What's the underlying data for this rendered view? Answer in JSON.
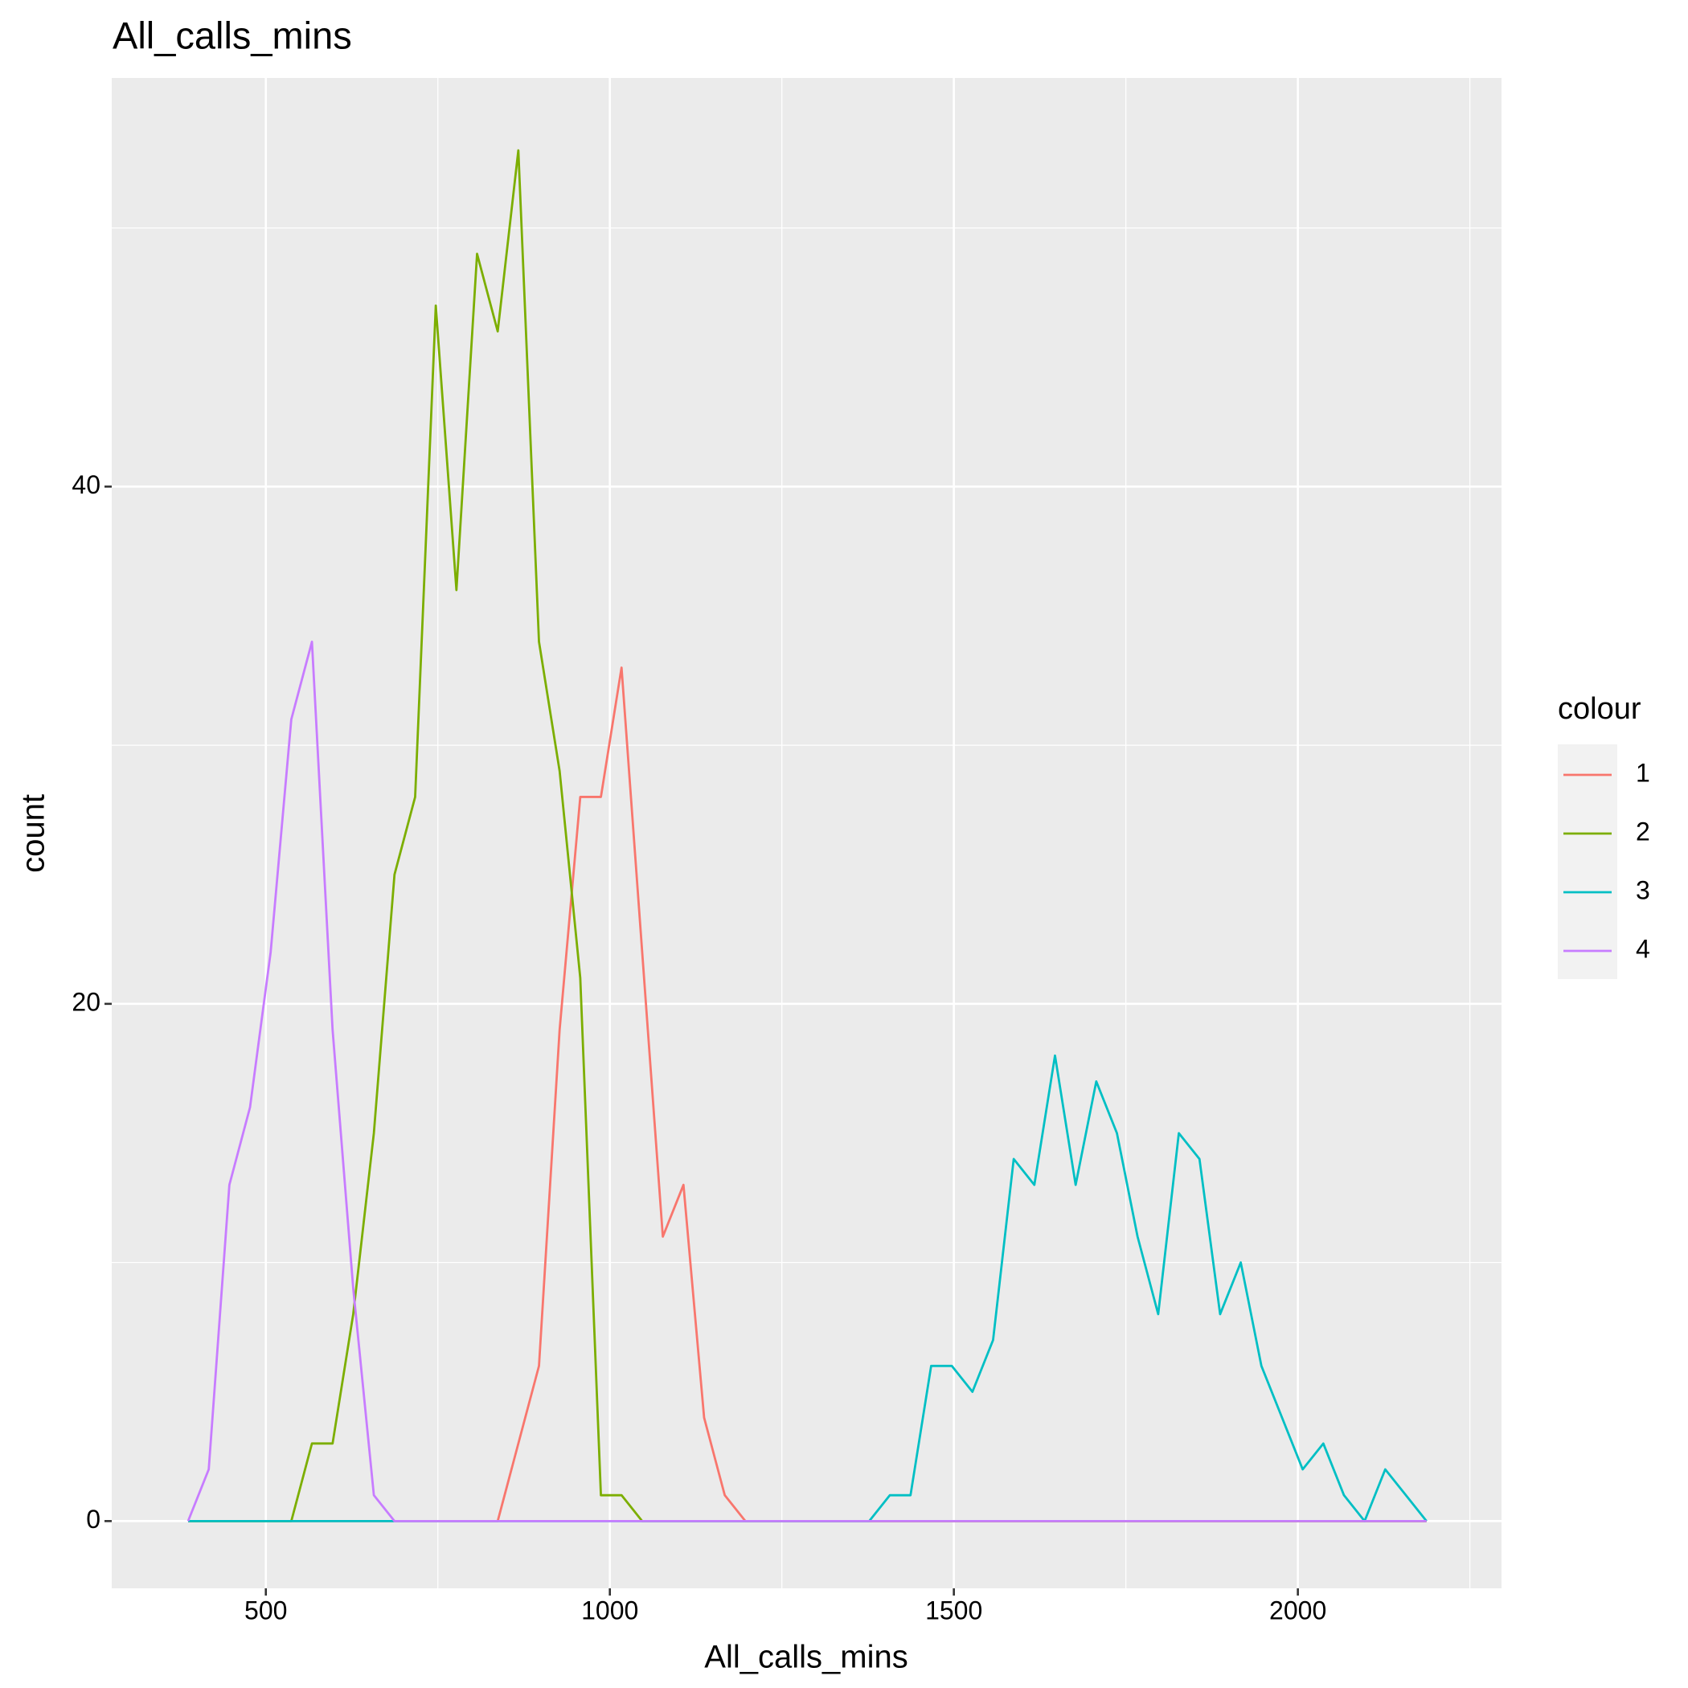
{
  "chart_data": {
    "type": "line",
    "title": "All_calls_mins",
    "x_label": "All_calls_mins",
    "y_label": "count",
    "legend_title": "colour",
    "legend_position": "right",
    "grid": true,
    "x": [
      387,
      417,
      447,
      477,
      507,
      537,
      567,
      597,
      627,
      657,
      687,
      717,
      747,
      777,
      807,
      837,
      867,
      897,
      927,
      957,
      987,
      1017,
      1047,
      1077,
      1107,
      1137,
      1167,
      1197,
      1227,
      1257,
      1287,
      1317,
      1347,
      1377,
      1407,
      1437,
      1467,
      1497,
      1527,
      1557,
      1587,
      1617,
      1647,
      1677,
      1707,
      1737,
      1767,
      1797,
      1827,
      1857,
      1887,
      1917,
      1947,
      1977,
      2007,
      2037,
      2067,
      2097,
      2127,
      2157,
      2187
    ],
    "series": [
      {
        "name": "1",
        "color": "#F8766D",
        "values": [
          0,
          0,
          0,
          0,
          0,
          0,
          0,
          0,
          0,
          0,
          0,
          0,
          0,
          0,
          0,
          0,
          3,
          6,
          19,
          28,
          28,
          33,
          22,
          11,
          13,
          4,
          1,
          0,
          0,
          0,
          0,
          0,
          0,
          0,
          0,
          0,
          0,
          0,
          0,
          0,
          0,
          0,
          0,
          0,
          0,
          0,
          0,
          0,
          0,
          0,
          0,
          0,
          0,
          0,
          0,
          0,
          0,
          0,
          0,
          0,
          0
        ]
      },
      {
        "name": "2",
        "color": "#7CAE00",
        "values": [
          0,
          0,
          0,
          0,
          0,
          0,
          3,
          3,
          8,
          15,
          25,
          28,
          47,
          36,
          49,
          46,
          53,
          34,
          29,
          21,
          1,
          1,
          0,
          0,
          0,
          0,
          0,
          0,
          0,
          0,
          0,
          0,
          0,
          0,
          0,
          0,
          0,
          0,
          0,
          0,
          0,
          0,
          0,
          0,
          0,
          0,
          0,
          0,
          0,
          0,
          0,
          0,
          0,
          0,
          0,
          0,
          0,
          0,
          0,
          0,
          0
        ]
      },
      {
        "name": "3",
        "color": "#00BFC4",
        "values": [
          0,
          0,
          0,
          0,
          0,
          0,
          0,
          0,
          0,
          0,
          0,
          0,
          0,
          0,
          0,
          0,
          0,
          0,
          0,
          0,
          0,
          0,
          0,
          0,
          0,
          0,
          0,
          0,
          0,
          0,
          0,
          0,
          0,
          0,
          1,
          1,
          6,
          6,
          5,
          7,
          14,
          13,
          18,
          13,
          17,
          15,
          11,
          8,
          15,
          14,
          8,
          10,
          6,
          4,
          2,
          3,
          1,
          0,
          2,
          1,
          0
        ]
      },
      {
        "name": "4",
        "color": "#C77CFF",
        "values": [
          0,
          2,
          13,
          16,
          22,
          31,
          34,
          19,
          9,
          1,
          0,
          0,
          0,
          0,
          0,
          0,
          0,
          0,
          0,
          0,
          0,
          0,
          0,
          0,
          0,
          0,
          0,
          0,
          0,
          0,
          0,
          0,
          0,
          0,
          0,
          0,
          0,
          0,
          0,
          0,
          0,
          0,
          0,
          0,
          0,
          0,
          0,
          0,
          0,
          0,
          0,
          0,
          0,
          0,
          0,
          0,
          0,
          0,
          0,
          0,
          0
        ]
      }
    ],
    "xlim": [
      276,
      2296
    ],
    "ylim": [
      -2.6,
      55.8
    ],
    "xticks": [
      500,
      1000,
      1500,
      2000
    ],
    "yticks": [
      0,
      20,
      40
    ],
    "x_minor_ticks": [
      250,
      750,
      1250,
      1750,
      2250
    ],
    "y_minor_ticks": [
      10,
      30,
      50
    ]
  }
}
